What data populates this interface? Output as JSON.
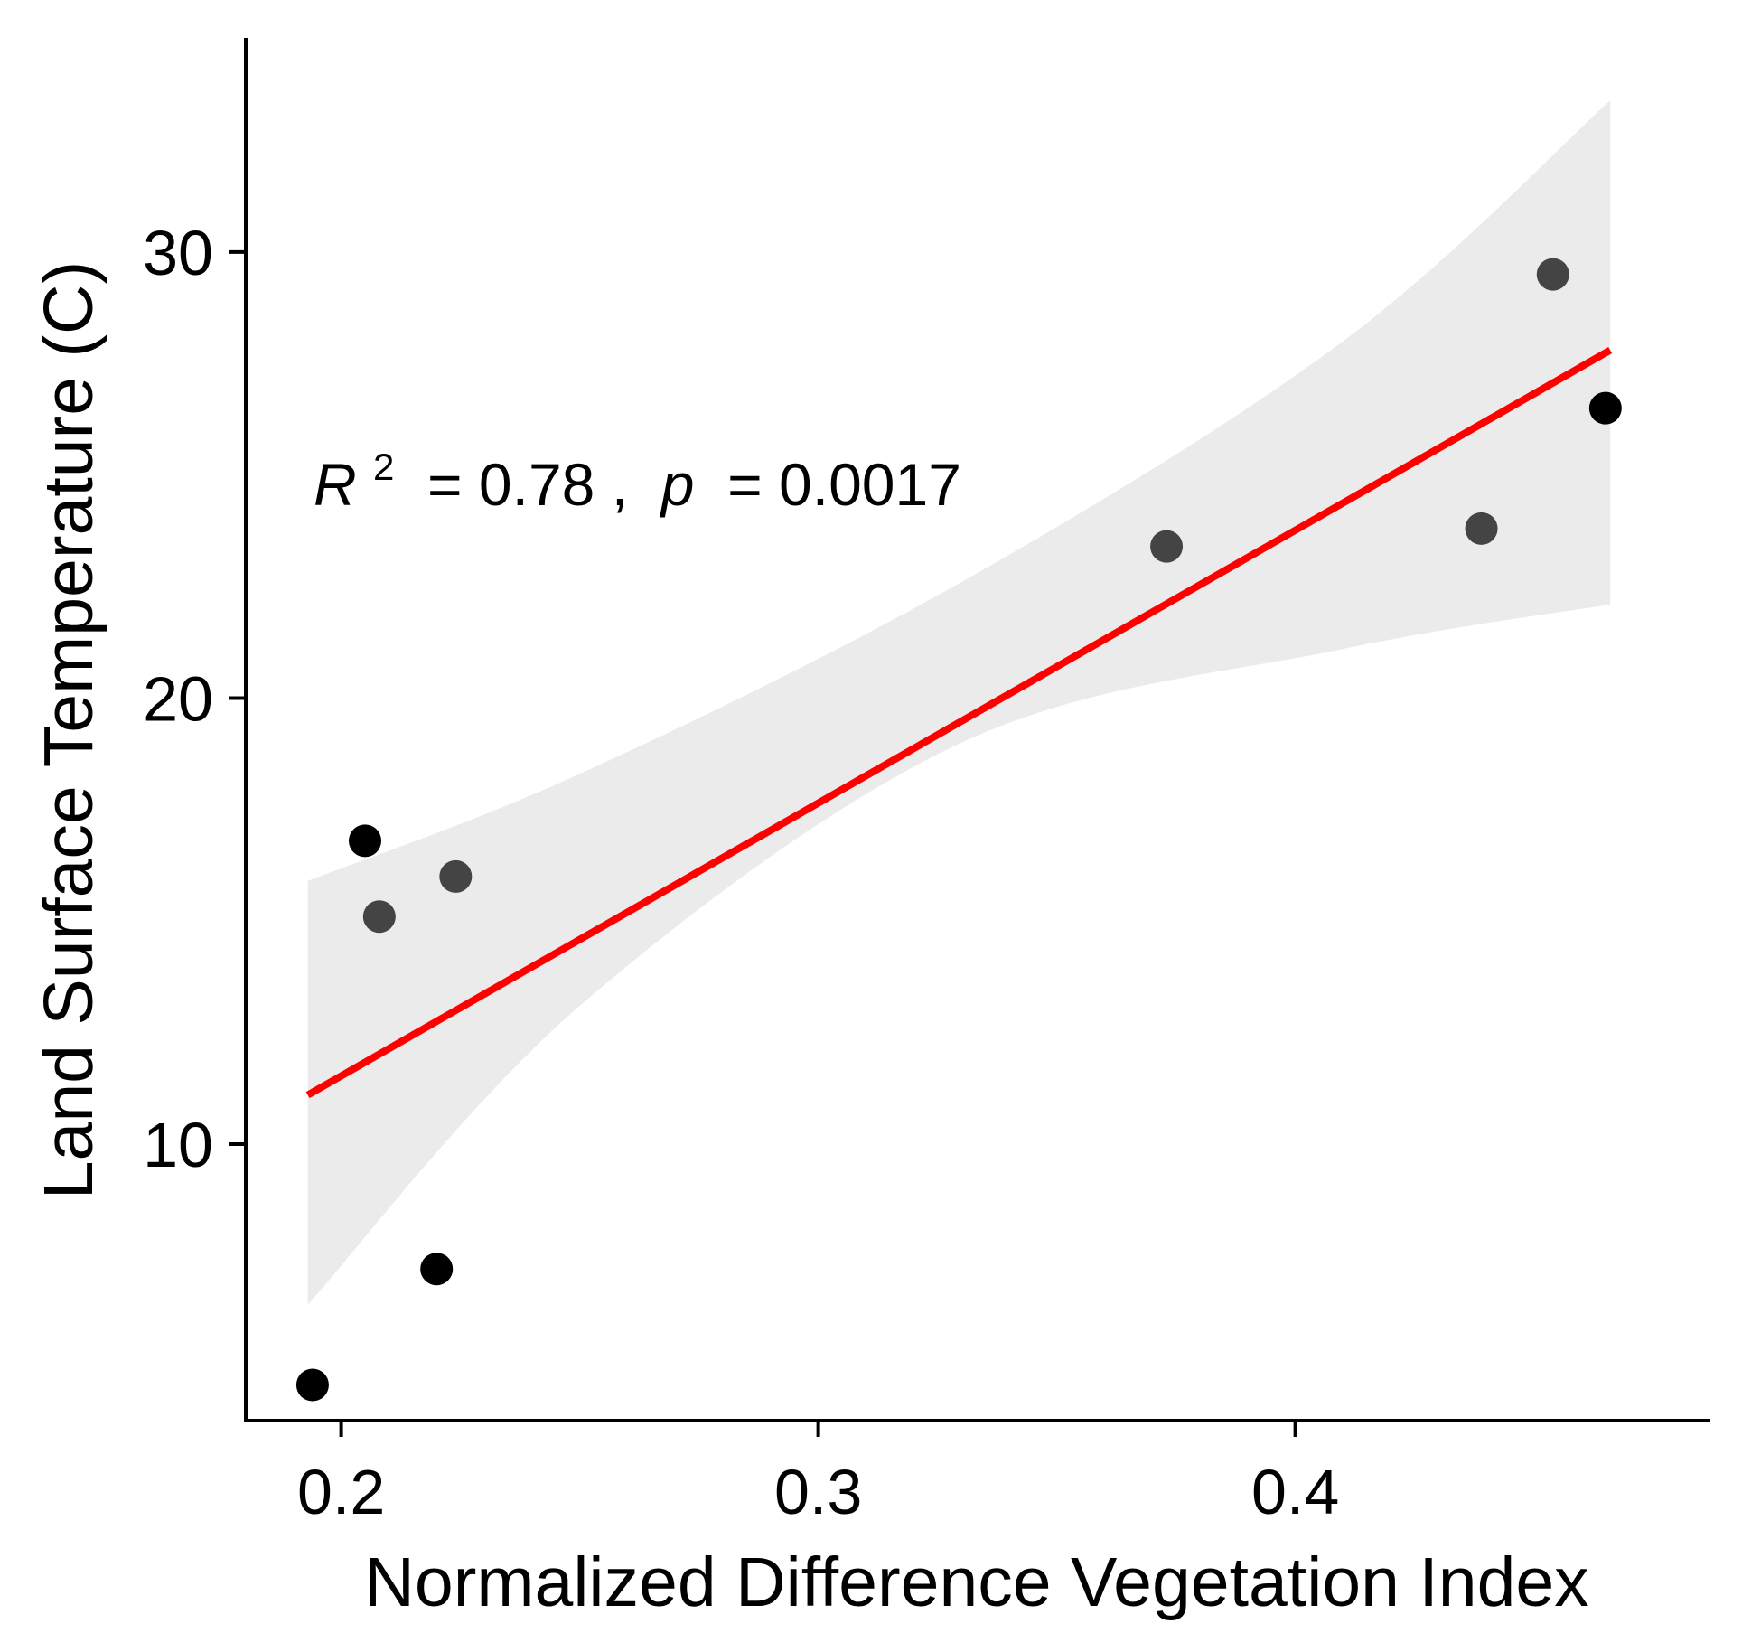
{
  "chart_data": {
    "type": "scatter",
    "title": "",
    "xlabel": "Normalized Difference Vegetation Index",
    "ylabel": "Land Surface  Temperature (C)",
    "xlim": [
      0.18,
      0.487
    ],
    "ylim": [
      3.8,
      34.8
    ],
    "x_ticks": [
      0.2,
      0.3,
      0.4
    ],
    "x_tick_labels": [
      "0.2",
      "0.3",
      "0.4"
    ],
    "y_ticks": [
      10,
      20,
      30
    ],
    "y_tick_labels": [
      "10",
      "20",
      "30"
    ],
    "grid": false,
    "legend": "none",
    "points": [
      {
        "x": 0.194,
        "y": 4.6,
        "color": "#000000"
      },
      {
        "x": 0.205,
        "y": 16.8,
        "color": "#000000"
      },
      {
        "x": 0.208,
        "y": 15.1,
        "color": "#444444"
      },
      {
        "x": 0.22,
        "y": 7.2,
        "color": "#000000"
      },
      {
        "x": 0.224,
        "y": 16.0,
        "color": "#444444"
      },
      {
        "x": 0.373,
        "y": 23.4,
        "color": "#444444"
      },
      {
        "x": 0.439,
        "y": 23.8,
        "color": "#444444"
      },
      {
        "x": 0.454,
        "y": 29.5,
        "color": "#444444"
      },
      {
        "x": 0.465,
        "y": 26.5,
        "color": "#000000"
      }
    ],
    "fit_line": {
      "type": "linear",
      "x_range": [
        0.193,
        0.466
      ],
      "y_range": [
        11.1,
        27.8
      ],
      "color": "#ff0000"
    },
    "confidence_band": {
      "color": "#ebebeb",
      "x": [
        0.193,
        0.25,
        0.33,
        0.41,
        0.466
      ],
      "lower": [
        6.4,
        13.1,
        19.0,
        21.1,
        22.1
      ],
      "upper": [
        15.9,
        18.3,
        22.6,
        28.0,
        33.4
      ]
    },
    "annotation": {
      "r_symbol": "R",
      "r_exponent": "2",
      "r_value_text": " = 0.78 , ",
      "p_symbol": "p",
      "p_value_text": " = 0.0017"
    }
  }
}
